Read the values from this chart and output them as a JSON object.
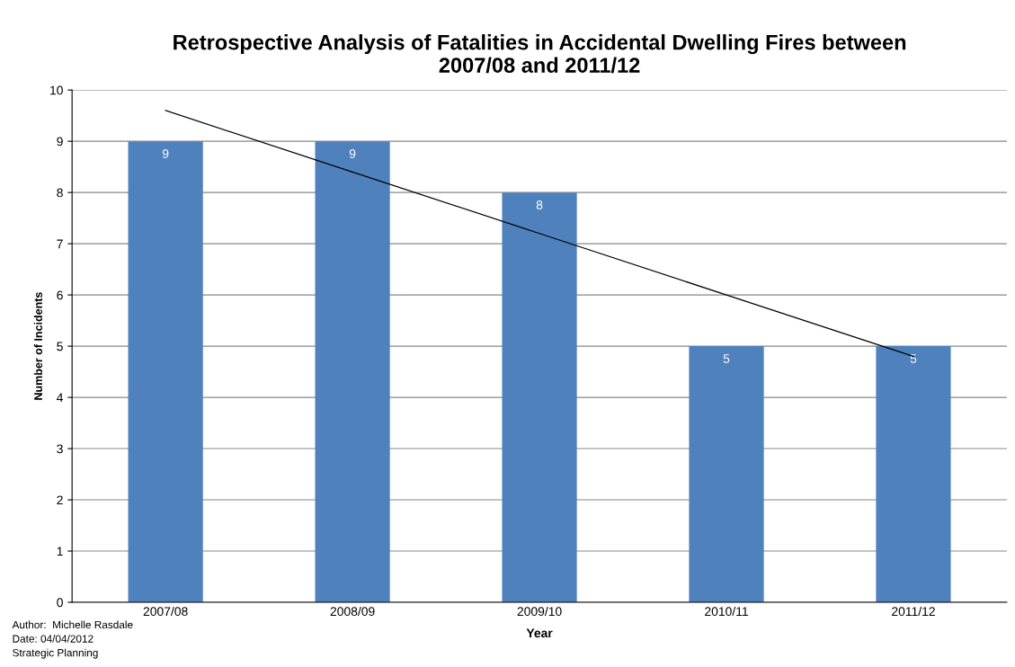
{
  "chart_data": {
    "type": "bar",
    "title": "Retrospective Analysis of Fatalities in Accidental Dwelling Fires between\n2007/08 and 2011/12",
    "xlabel": "Year",
    "ylabel": "Number of Incidents",
    "categories": [
      "2007/08",
      "2008/09",
      "2009/10",
      "2010/11",
      "2011/12"
    ],
    "series": [
      {
        "color": "#4f81bd",
        "values": [
          9,
          9,
          8,
          5,
          5
        ],
        "data_labels": true
      },
      {
        "type": "line",
        "color": "#000000",
        "values": [
          9.6,
          8.4,
          7.2,
          6.0,
          4.8
        ],
        "line_style": "solid",
        "marker": "none"
      }
    ],
    "ylim": [
      0,
      10
    ],
    "yticks": [
      0,
      1,
      2,
      3,
      4,
      5,
      6,
      7,
      8,
      9,
      10
    ],
    "grid": "y",
    "annotations": [
      "Author:  Michelle Rasdale",
      "Date: 04/04/2012",
      "Strategic Planning"
    ]
  }
}
